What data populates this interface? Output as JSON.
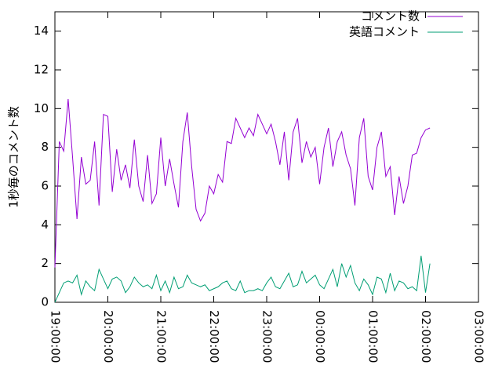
{
  "chart_data": {
    "type": "line",
    "ylabel": "1秒毎のコメント数",
    "x": [
      "19:00:00",
      "19:05:00",
      "19:10:00",
      "19:15:00",
      "19:20:00",
      "19:25:00",
      "19:30:00",
      "19:35:00",
      "19:40:00",
      "19:45:00",
      "19:50:00",
      "19:55:00",
      "20:00:00",
      "20:05:00",
      "20:10:00",
      "20:15:00",
      "20:20:00",
      "20:25:00",
      "20:30:00",
      "20:35:00",
      "20:40:00",
      "20:45:00",
      "20:50:00",
      "20:55:00",
      "21:00:00",
      "21:05:00",
      "21:10:00",
      "21:15:00",
      "21:20:00",
      "21:25:00",
      "21:30:00",
      "21:35:00",
      "21:40:00",
      "21:45:00",
      "21:50:00",
      "21:55:00",
      "22:00:00",
      "22:05:00",
      "22:10:00",
      "22:15:00",
      "22:20:00",
      "22:25:00",
      "22:30:00",
      "22:35:00",
      "22:40:00",
      "22:45:00",
      "22:50:00",
      "22:55:00",
      "23:00:00",
      "23:05:00",
      "23:10:00",
      "23:15:00",
      "23:20:00",
      "23:25:00",
      "23:30:00",
      "23:35:00",
      "23:40:00",
      "23:45:00",
      "23:50:00",
      "23:55:00",
      "00:00:00",
      "00:05:00",
      "00:10:00",
      "00:15:00",
      "00:20:00",
      "00:25:00",
      "00:30:00",
      "00:35:00",
      "00:40:00",
      "00:45:00",
      "00:50:00",
      "00:55:00",
      "01:00:00",
      "01:05:00",
      "01:10:00",
      "01:15:00",
      "01:20:00",
      "01:25:00",
      "01:30:00",
      "01:35:00",
      "01:40:00",
      "01:45:00",
      "01:50:00",
      "01:55:00",
      "02:00:00",
      "02:05:00"
    ],
    "series": [
      {
        "name": "コメント数",
        "color": "#9400d3",
        "values": [
          1.8,
          8.3,
          7.8,
          10.5,
          7.5,
          4.3,
          7.5,
          6.1,
          6.3,
          8.3,
          5.0,
          9.7,
          9.6,
          5.7,
          7.9,
          6.3,
          7.1,
          5.9,
          8.4,
          6.0,
          5.2,
          7.6,
          5.1,
          5.6,
          8.5,
          6.0,
          7.4,
          6.1,
          4.9,
          8.3,
          9.8,
          7.0,
          4.8,
          4.2,
          4.6,
          6.0,
          5.6,
          6.6,
          6.2,
          8.3,
          8.2,
          9.5,
          9.0,
          8.5,
          9.0,
          8.6,
          9.7,
          9.2,
          8.7,
          9.2,
          8.3,
          7.1,
          8.8,
          6.3,
          8.8,
          9.5,
          7.2,
          8.3,
          7.5,
          8.0,
          6.1,
          8.0,
          9.0,
          7.0,
          8.3,
          8.8,
          7.6,
          6.9,
          5.0,
          8.5,
          9.5,
          6.5,
          5.8,
          8.0,
          8.8,
          6.5,
          7.0,
          4.5,
          6.5,
          5.1,
          6.0,
          7.6,
          7.7,
          8.5,
          8.9,
          9.0
        ]
      },
      {
        "name": "英語コメント",
        "color": "#009e73",
        "values": [
          0,
          0.5,
          1.0,
          1.1,
          1.0,
          1.4,
          0.4,
          1.1,
          0.8,
          0.6,
          1.7,
          1.2,
          0.7,
          1.2,
          1.3,
          1.1,
          0.5,
          0.8,
          1.3,
          1.0,
          0.8,
          0.9,
          0.7,
          1.4,
          0.6,
          1.1,
          0.5,
          1.3,
          0.7,
          0.8,
          1.4,
          1.0,
          0.9,
          0.8,
          0.9,
          0.6,
          0.7,
          0.8,
          1.0,
          1.1,
          0.7,
          0.6,
          1.1,
          0.5,
          0.6,
          0.6,
          0.7,
          0.6,
          1.0,
          1.3,
          0.8,
          0.7,
          1.1,
          1.5,
          0.8,
          0.9,
          1.6,
          1.0,
          1.2,
          1.4,
          0.9,
          0.7,
          1.2,
          1.7,
          0.8,
          2.0,
          1.3,
          1.9,
          1.0,
          0.6,
          1.2,
          0.9,
          0.4,
          1.3,
          1.2,
          0.5,
          1.5,
          0.6,
          1.1,
          1.0,
          0.7,
          0.8,
          0.6,
          2.4,
          0.5,
          2.0
        ]
      }
    ],
    "xlim": [
      "19:00:00",
      "03:00:00"
    ],
    "xticks": [
      "19:00:00",
      "20:00:00",
      "21:00:00",
      "22:00:00",
      "23:00:00",
      "00:00:00",
      "01:00:00",
      "02:00:00",
      "03:00:00"
    ],
    "ylim": [
      0,
      15
    ],
    "yticks": [
      0,
      2,
      4,
      6,
      8,
      10,
      12,
      14
    ],
    "legend": "top-right"
  }
}
